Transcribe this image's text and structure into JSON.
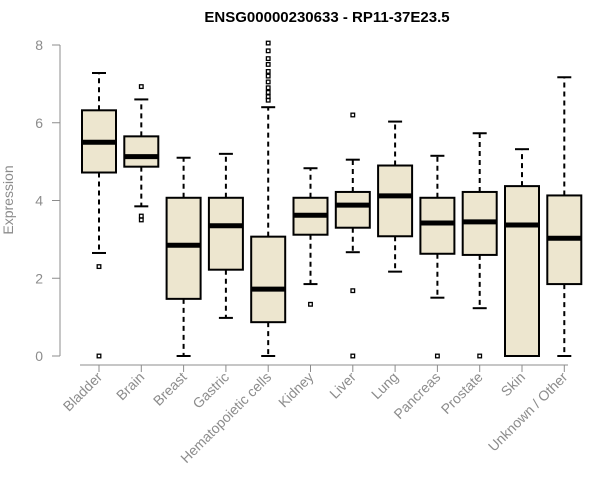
{
  "chart_data": {
    "type": "boxplot",
    "title": "ENSG00000230633 - RP11-37E23.5",
    "xlabel": "",
    "ylabel": "Expression",
    "ylim": [
      0,
      8
    ],
    "yticks": [
      0,
      2,
      4,
      6,
      8
    ],
    "categories": [
      "Bladder",
      "Brain",
      "Breast",
      "Gastric",
      "Hematopoietic cells",
      "Kidney",
      "Liver",
      "Lung",
      "Pancreas",
      "Prostate",
      "Skin",
      "Unknown / Other"
    ],
    "boxes": [
      {
        "category": "Bladder",
        "min": 2.65,
        "q1": 4.72,
        "median": 5.5,
        "q3": 6.32,
        "max": 7.28,
        "outliers": [
          2.3,
          0.0
        ]
      },
      {
        "category": "Brain",
        "min": 3.85,
        "q1": 4.87,
        "median": 5.13,
        "q3": 5.65,
        "max": 6.6,
        "outliers": [
          6.93,
          3.6,
          3.5
        ]
      },
      {
        "category": "Breast",
        "min": 0.0,
        "q1": 1.47,
        "median": 2.85,
        "q3": 4.07,
        "max": 5.1,
        "outliers": []
      },
      {
        "category": "Gastric",
        "min": 0.98,
        "q1": 2.22,
        "median": 3.35,
        "q3": 4.07,
        "max": 5.2,
        "outliers": []
      },
      {
        "category": "Hematopoietic cells",
        "min": 0.0,
        "q1": 0.87,
        "median": 1.72,
        "q3": 3.07,
        "max": 6.4,
        "outliers": [
          8.05,
          7.85,
          7.65,
          7.5,
          7.32,
          7.2,
          7.05,
          6.9,
          6.78,
          6.67,
          6.58
        ]
      },
      {
        "category": "Kidney",
        "min": 1.85,
        "q1": 3.12,
        "median": 3.62,
        "q3": 4.07,
        "max": 4.83,
        "outliers": [
          1.33
        ]
      },
      {
        "category": "Liver",
        "min": 2.67,
        "q1": 3.3,
        "median": 3.88,
        "q3": 4.22,
        "max": 5.05,
        "outliers": [
          6.2,
          1.68,
          0.0
        ]
      },
      {
        "category": "Lung",
        "min": 2.17,
        "q1": 3.08,
        "median": 4.12,
        "q3": 4.9,
        "max": 6.03,
        "outliers": []
      },
      {
        "category": "Pancreas",
        "min": 1.5,
        "q1": 2.63,
        "median": 3.42,
        "q3": 4.07,
        "max": 5.15,
        "outliers": [
          0.0
        ]
      },
      {
        "category": "Prostate",
        "min": 1.23,
        "q1": 2.6,
        "median": 3.45,
        "q3": 4.22,
        "max": 5.73,
        "outliers": [
          0.0
        ]
      },
      {
        "category": "Skin",
        "min": 0.0,
        "q1": 0.0,
        "median": 3.37,
        "q3": 4.37,
        "max": 5.32,
        "outliers": []
      },
      {
        "category": "Unknown / Other",
        "min": 0.0,
        "q1": 1.85,
        "median": 3.03,
        "q3": 4.13,
        "max": 7.17,
        "outliers": []
      }
    ]
  }
}
